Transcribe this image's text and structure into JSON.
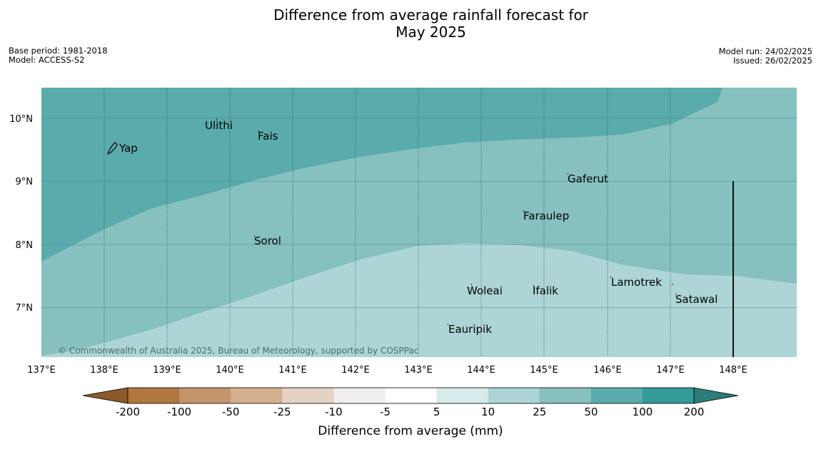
{
  "header": {
    "title_line1": "Difference from average rainfall forecast for",
    "title_line2": "May 2025",
    "base_period": "Base period: 1981-2018",
    "model": "Model: ACCESS-S2",
    "model_run": "Model run: 24/02/2025",
    "issued": "Issued: 26/02/2025"
  },
  "map": {
    "lat_labels": [
      "10°N",
      "9°N",
      "8°N",
      "7°N"
    ],
    "lon_labels": [
      "137°E",
      "138°E",
      "139°E",
      "140°E",
      "141°E",
      "142°E",
      "143°E",
      "144°E",
      "145°E",
      "146°E",
      "147°E",
      "148°E"
    ],
    "places": [
      "Ulithi",
      "Fais",
      "Yap",
      "Gaferut",
      "Faraulep",
      "Sorol",
      "Lamotrek",
      "Woleai",
      "Ifalik",
      "Satawal",
      "Eauripik"
    ],
    "copyright": "© Commonwealth of Australia 2025, Bureau of Meteorology, supported by COSPPac",
    "colors": {
      "band_100_200": "#5aabab",
      "band_50_100": "#86c0bf",
      "band_25_50": "#aed5d5"
    }
  },
  "colorbar": {
    "ticks": [
      "-200",
      "-100",
      "-50",
      "-25",
      "-10",
      "-5",
      "5",
      "10",
      "25",
      "50",
      "100",
      "200"
    ],
    "colors": [
      "#8c5a2a",
      "#b0773e",
      "#c4946b",
      "#d5b08e",
      "#e5d2c2",
      "#f0eeea",
      "#ffffff",
      "#d6ebea",
      "#aed5d5",
      "#86c0bf",
      "#5aabab",
      "#349a9a",
      "#2a7d79"
    ],
    "label": "Difference from average (mm)"
  }
}
